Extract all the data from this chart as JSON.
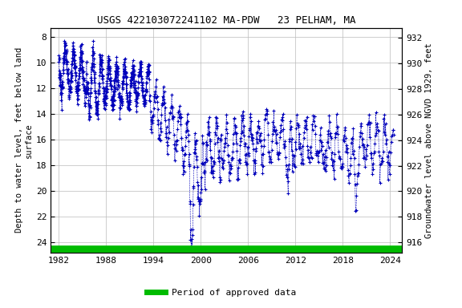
{
  "title": "USGS 422103072241102 MA-PDW   23 PELHAM, MA",
  "ylabel_left": "Depth to water level, feet below land\nsurface",
  "ylabel_right": "Groundwater level above NGVD 1929, feet",
  "ylim_left": [
    24.8,
    7.3
  ],
  "ylim_right": [
    915.2,
    932.8
  ],
  "xlim": [
    1981.0,
    2025.5
  ],
  "xticks": [
    1982,
    1988,
    1994,
    2000,
    2006,
    2012,
    2018,
    2024
  ],
  "yticks_left": [
    8,
    10,
    12,
    14,
    16,
    18,
    20,
    22,
    24
  ],
  "yticks_right": [
    932,
    930,
    928,
    926,
    924,
    922,
    920,
    918,
    916
  ],
  "bg_color": "#ffffff",
  "plot_bg_color": "#ffffff",
  "grid_color": "#bbbbbb",
  "data_color": "#0000bb",
  "green_bar_color": "#00bb00",
  "title_fontsize": 9,
  "axis_fontsize": 7.5,
  "tick_fontsize": 8,
  "legend_fontsize": 8,
  "green_bar_y": 24.55,
  "green_bar_linewidth": 7
}
